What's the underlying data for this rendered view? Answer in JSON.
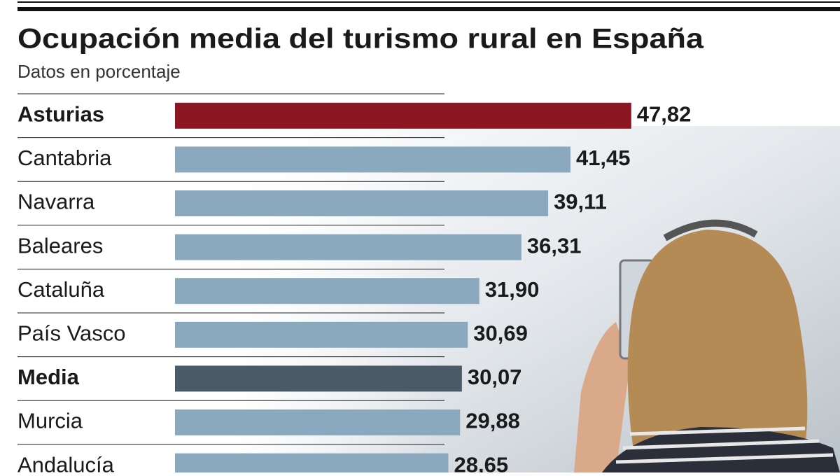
{
  "chart_data": {
    "type": "hbar",
    "title": "Ocupación media del turismo rural en España",
    "subtitle": "Datos en porcentaje",
    "categories": [
      "Asturias",
      "Cantabria",
      "Navarra",
      "Baleares",
      "Cataluña",
      "País Vasco",
      "Media",
      "Murcia",
      "Andalucía"
    ],
    "values": [
      47.82,
      41.45,
      39.11,
      36.31,
      31.9,
      30.69,
      30.07,
      29.88,
      28.65
    ],
    "value_labels": [
      "47,82",
      "41,45",
      "39,11",
      "36,31",
      "31,90",
      "30,69",
      "30,07",
      "29,88",
      "28,65"
    ],
    "color": "#8aa9bf",
    "colors": [
      "#8b1520",
      "#8aa9bf",
      "#8aa9bf",
      "#8aa9bf",
      "#8aa9bf",
      "#8aa9bf",
      "#4a5a66",
      "#8aa9bf",
      "#8aa9bf"
    ]
  }
}
